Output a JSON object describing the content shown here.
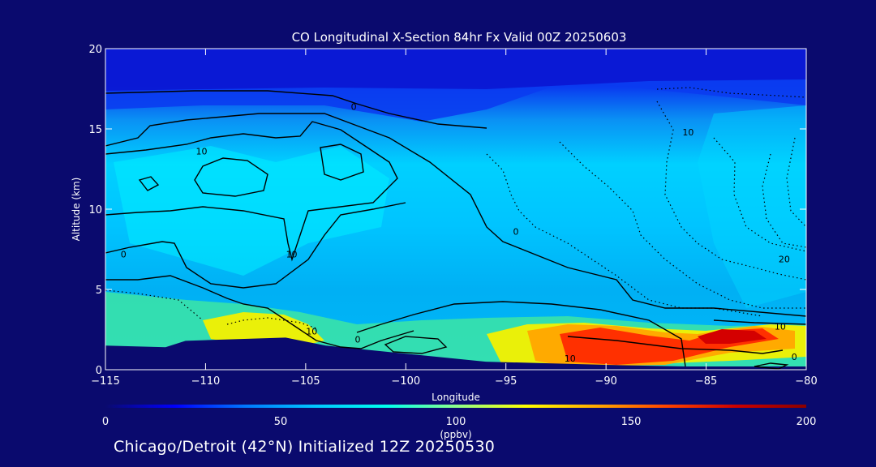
{
  "chart_data": {
    "type": "heatmap",
    "title": "CO Longitudinal X-Section 84hr  Fx Valid 00Z 20250603",
    "xlabel": "Longitude",
    "ylabel": "Altitude (km)",
    "xlim": [
      -115,
      -80
    ],
    "ylim": [
      0,
      20
    ],
    "xticks": [
      -115,
      -110,
      -105,
      -100,
      -95,
      -90,
      -85,
      -80
    ],
    "yticks": [
      0,
      5,
      10,
      15,
      20
    ],
    "x_tick_labels": [
      "−115",
      "−110",
      "−105",
      "−100",
      "−95",
      "−90",
      "−85",
      "−80"
    ],
    "y_tick_labels": [
      "0",
      "5",
      "10",
      "15",
      "20"
    ],
    "colorbar": {
      "min": 0,
      "max": 200,
      "ticks": [
        0,
        50,
        100,
        150,
        200
      ],
      "tick_labels": [
        "0",
        "50",
        "100",
        "150",
        "200"
      ],
      "unit_label": "(ppbv)",
      "colors": [
        "#0a0a6e",
        "#0000ff",
        "#0078ff",
        "#00c8ff",
        "#00ffee",
        "#8cff8c",
        "#ffff00",
        "#ffaa00",
        "#ff4400",
        "#cc0000",
        "#8b0000"
      ]
    },
    "terrain_km": [
      {
        "lon": -115,
        "alt": 1.5
      },
      {
        "lon": -112,
        "alt": 1.4
      },
      {
        "lon": -111,
        "alt": 1.8
      },
      {
        "lon": -106,
        "alt": 2.0
      },
      {
        "lon": -104,
        "alt": 1.5
      },
      {
        "lon": -100,
        "alt": 1.0
      },
      {
        "lon": -96,
        "alt": 0.5
      },
      {
        "lon": -90,
        "alt": 0.3
      },
      {
        "lon": -86,
        "alt": 0.2
      },
      {
        "lon": -80,
        "alt": 0.2
      }
    ],
    "contour_labels": [
      {
        "text": "0",
        "lon": -102.6,
        "alt": 16.4
      },
      {
        "text": "10",
        "lon": -110.2,
        "alt": 13.6
      },
      {
        "text": "10",
        "lon": -105.7,
        "alt": 7.2
      },
      {
        "text": "0",
        "lon": -114.1,
        "alt": 7.2
      },
      {
        "text": "0",
        "lon": -94.5,
        "alt": 8.6
      },
      {
        "text": "10",
        "lon": -85.9,
        "alt": 14.8
      },
      {
        "text": "20",
        "lon": -81.1,
        "alt": 6.9
      },
      {
        "text": "10",
        "lon": -104.7,
        "alt": 2.4
      },
      {
        "text": "0",
        "lon": -102.4,
        "alt": 1.9
      },
      {
        "text": "10",
        "lon": -91.8,
        "alt": 0.7
      },
      {
        "text": "10",
        "lon": -81.3,
        "alt": 2.7
      },
      {
        "text": "0",
        "lon": -80.6,
        "alt": 0.8
      }
    ]
  },
  "footer": "Chicago/Detroit (42°N) Initialized 12Z 20250530"
}
